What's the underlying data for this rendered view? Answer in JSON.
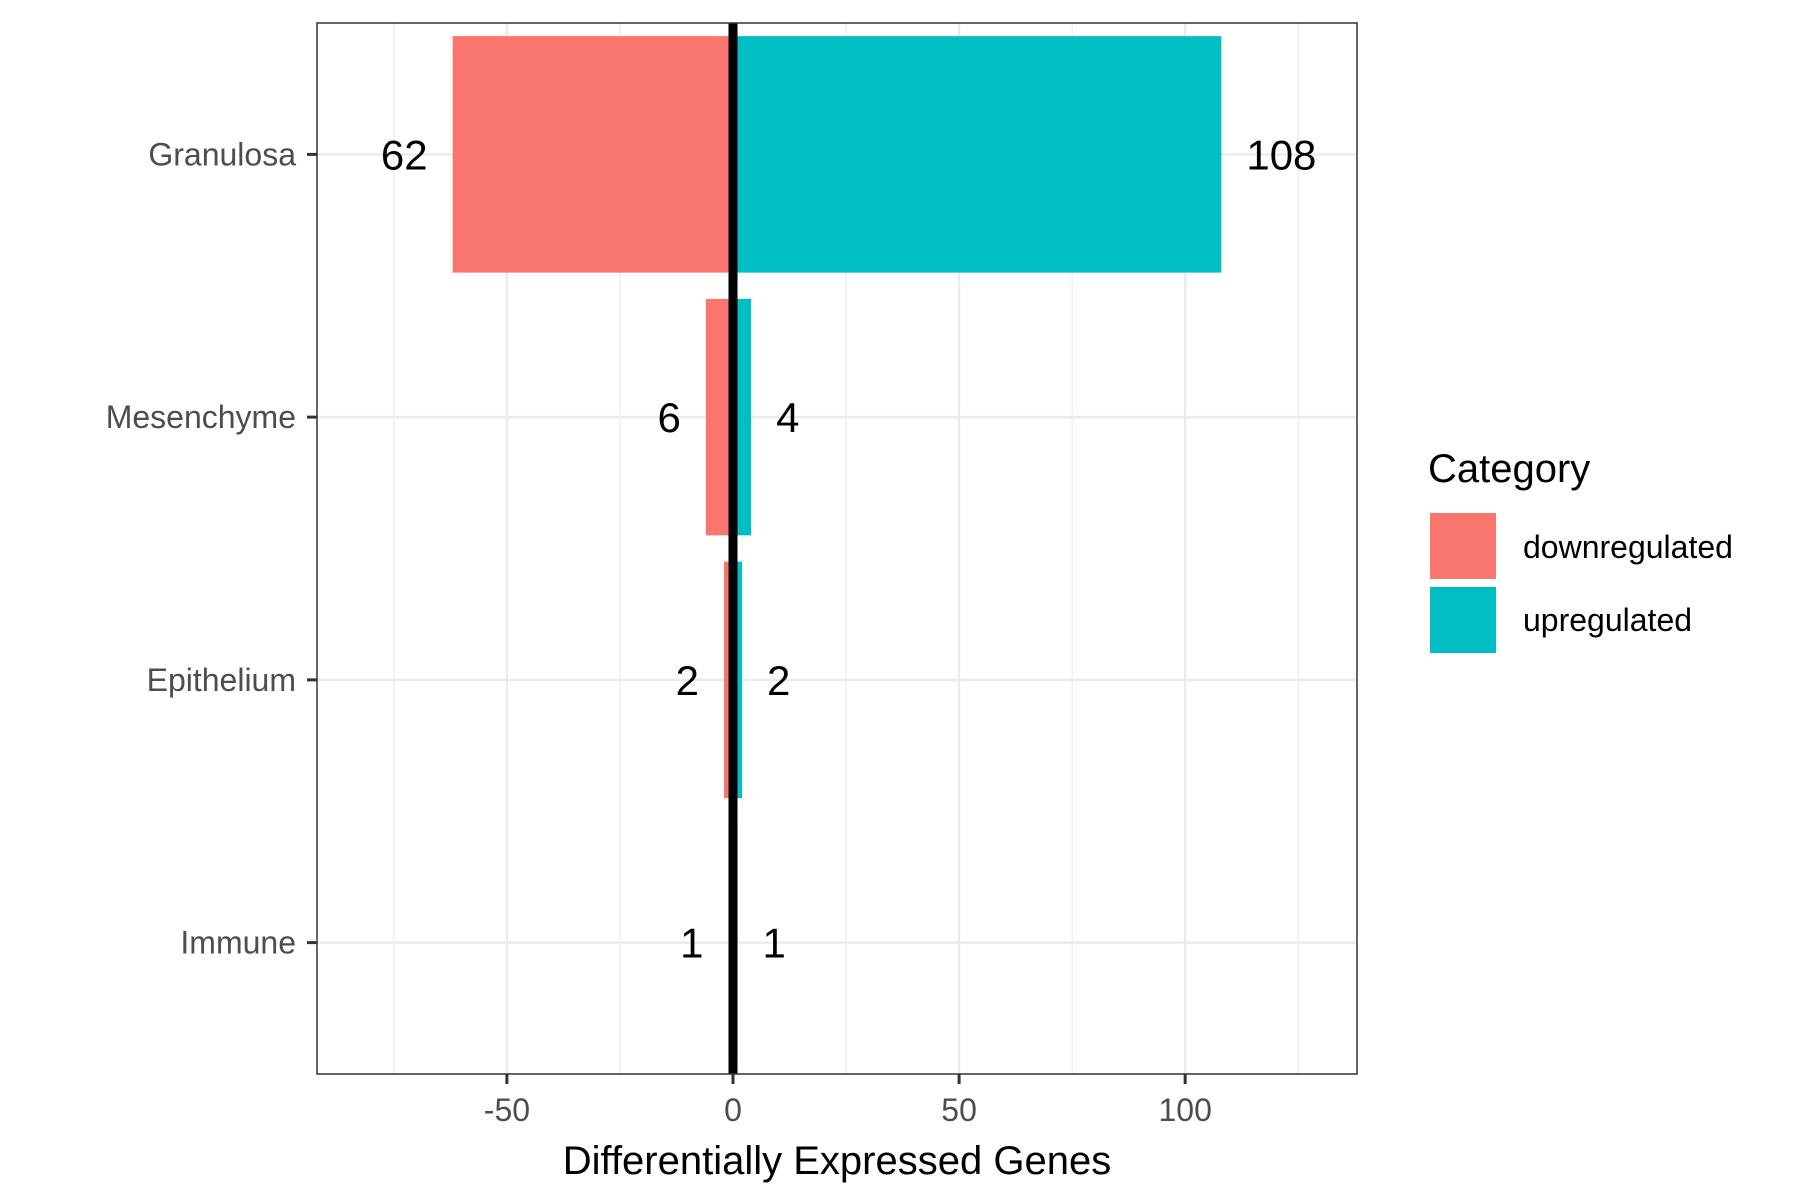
{
  "chart_data": {
    "type": "bar",
    "orientation": "horizontal",
    "categories": [
      "Granulosa",
      "Mesenchyme",
      "Epithelium",
      "Immune"
    ],
    "series": [
      {
        "name": "downregulated",
        "values": [
          -62,
          -6,
          -2,
          -1
        ],
        "labels": [
          "62",
          "6",
          "2",
          "1"
        ],
        "color": "#F8766D"
      },
      {
        "name": "upregulated",
        "values": [
          108,
          4,
          2,
          1
        ],
        "labels": [
          "108",
          "4",
          "2",
          "1"
        ],
        "color": "#00BFC4"
      }
    ],
    "xlabel": "Differentially Expressed Genes",
    "ylabel": "",
    "xlim": [
      -92,
      138
    ],
    "xticks": [
      -50,
      0,
      50,
      100
    ],
    "xtick_labels": [
      "-50",
      "0",
      "50",
      "100"
    ],
    "zero_line": true,
    "grid": true,
    "legend": {
      "title": "Category",
      "position": "right",
      "entries": [
        "downregulated",
        "upregulated"
      ]
    }
  }
}
